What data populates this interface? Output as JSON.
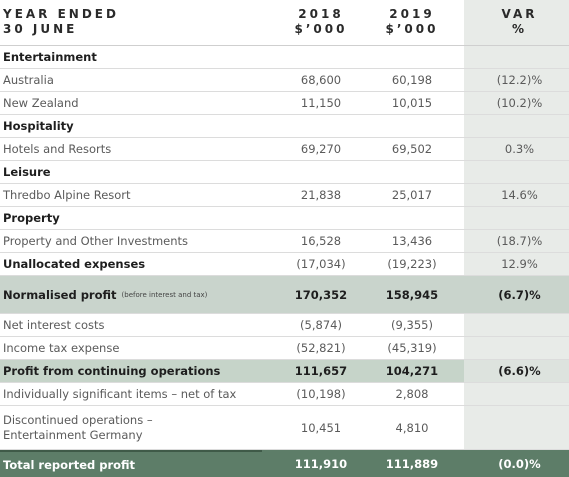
{
  "header": {
    "period": [
      "YEAR ENDED",
      "30 JUNE"
    ],
    "columns": [
      [
        "2018",
        "$’000"
      ],
      [
        "2019",
        "$’000"
      ],
      [
        "VAR",
        "%"
      ]
    ]
  },
  "rows": [
    {
      "label": "Entertainment"
    },
    {
      "label": "Australia",
      "cells": [
        "68,600",
        "60,198",
        "(12.2)%"
      ]
    },
    {
      "label": "New Zealand",
      "cells": [
        "11,150",
        "10,015",
        "(10.2)%"
      ]
    },
    {
      "label": "Hospitality"
    },
    {
      "label": "Hotels and Resorts",
      "cells": [
        "69,270",
        "69,502",
        "0.3%"
      ]
    },
    {
      "label": "Leisure"
    },
    {
      "label": "Thredbo Alpine Resort",
      "cells": [
        "21,838",
        "25,017",
        "14.6%"
      ]
    },
    {
      "label": "Property"
    },
    {
      "label": "Property and Other Investments",
      "cells": [
        "16,528",
        "13,436",
        "(18.7)%"
      ]
    },
    {
      "label": "Unallocated expenses",
      "cells": [
        "(17,034)",
        "(19,223)",
        "12.9%"
      ]
    },
    {
      "label": "Normalised profit",
      "note": "(before interest and tax)",
      "cells": [
        "170,352",
        "158,945",
        "(6.7)%"
      ]
    },
    {
      "label": "Net interest costs",
      "cells": [
        "(5,874)",
        "(9,355)"
      ]
    },
    {
      "label": "Income tax expense",
      "cells": [
        "(52,821)",
        "(45,319)"
      ]
    },
    {
      "label": "Profit from continuing operations",
      "cells": [
        "111,657",
        "104,271",
        "(6.6)%"
      ]
    },
    {
      "label": "Individually significant items – net of tax",
      "cells": [
        "(10,198)",
        "2,808"
      ]
    },
    {
      "label": [
        "Discontinued operations –",
        "Entertainment Germany"
      ],
      "cells": [
        "10,451",
        "4,810"
      ]
    },
    {
      "label": "Total reported profit",
      "cells": [
        "111,910",
        "111,889",
        "(0.0)%"
      ]
    }
  ]
}
